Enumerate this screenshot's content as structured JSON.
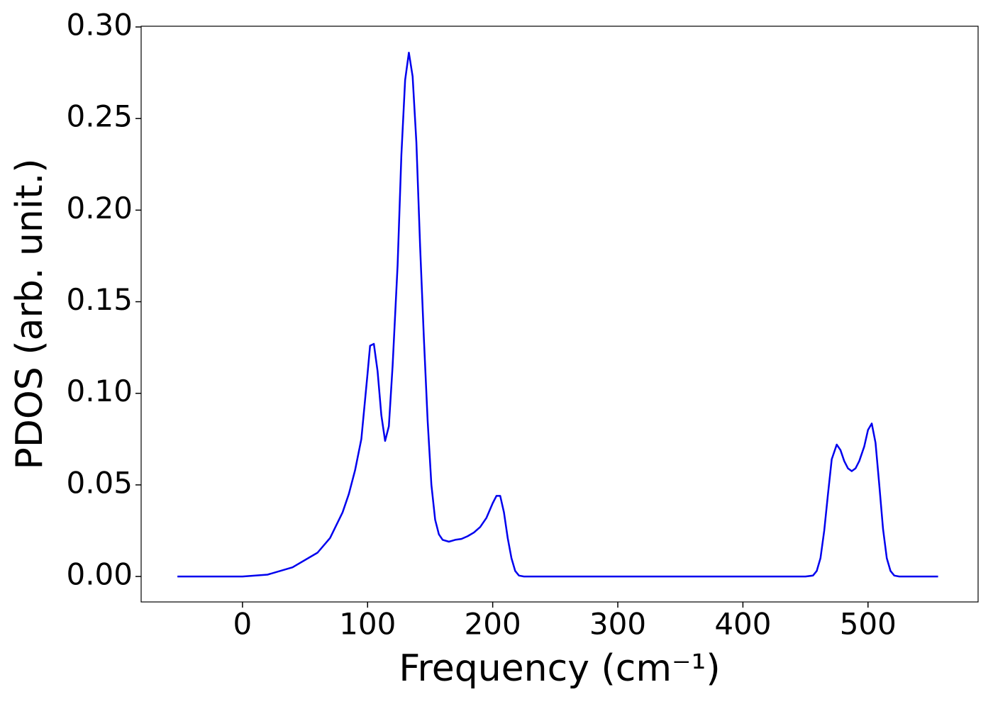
{
  "chart_data": {
    "type": "line",
    "x_label": "Frequency (cm⁻¹)",
    "y_label": "PDOS (arb. unit.)",
    "x": [
      -52,
      0,
      20,
      40,
      60,
      70,
      80,
      85,
      90,
      95,
      100,
      102,
      105,
      108,
      111,
      114,
      117,
      120,
      124,
      127,
      130,
      133,
      136,
      139,
      142,
      145,
      148,
      151,
      154,
      157,
      160,
      165,
      170,
      175,
      180,
      185,
      190,
      195,
      200,
      203,
      206,
      209,
      212,
      215,
      218,
      221,
      225,
      300,
      450,
      456,
      459,
      462,
      465,
      468,
      471,
      475,
      478,
      481,
      484,
      487,
      490,
      493,
      497,
      500,
      503,
      506,
      509,
      512,
      515,
      518,
      521,
      525,
      556
    ],
    "series": [
      {
        "color": "#0000ee",
        "values": [
          0,
          0,
          0.001,
          0.005,
          0.013,
          0.021,
          0.035,
          0.045,
          0.058,
          0.075,
          0.111,
          0.126,
          0.127,
          0.112,
          0.088,
          0.074,
          0.082,
          0.115,
          0.17,
          0.23,
          0.271,
          0.286,
          0.273,
          0.237,
          0.18,
          0.13,
          0.085,
          0.05,
          0.031,
          0.023,
          0.02,
          0.019,
          0.02,
          0.0205,
          0.022,
          0.024,
          0.027,
          0.032,
          0.04,
          0.044,
          0.044,
          0.035,
          0.021,
          0.01,
          0.003,
          0.0005,
          0,
          0,
          0,
          0.0005,
          0.003,
          0.01,
          0.025,
          0.045,
          0.064,
          0.072,
          0.069,
          0.063,
          0.059,
          0.0575,
          0.059,
          0.063,
          0.071,
          0.08,
          0.0835,
          0.073,
          0.05,
          0.026,
          0.01,
          0.003,
          0.0005,
          0,
          0
        ]
      }
    ],
    "xlim": [
      -81,
      588
    ],
    "ylim": [
      -0.0139,
      0.3004
    ],
    "xticks": [
      0,
      100,
      200,
      300,
      400,
      500
    ],
    "yticks": [
      {
        "value": 0,
        "label": "0.00"
      },
      {
        "value": 0.05,
        "label": "0.05"
      },
      {
        "value": 0.1,
        "label": "0.10"
      },
      {
        "value": 0.15,
        "label": "0.15"
      },
      {
        "value": 0.2,
        "label": "0.20"
      },
      {
        "value": 0.25,
        "label": "0.25"
      },
      {
        "value": 0.3,
        "label": "0.30"
      }
    ],
    "grid": false
  }
}
